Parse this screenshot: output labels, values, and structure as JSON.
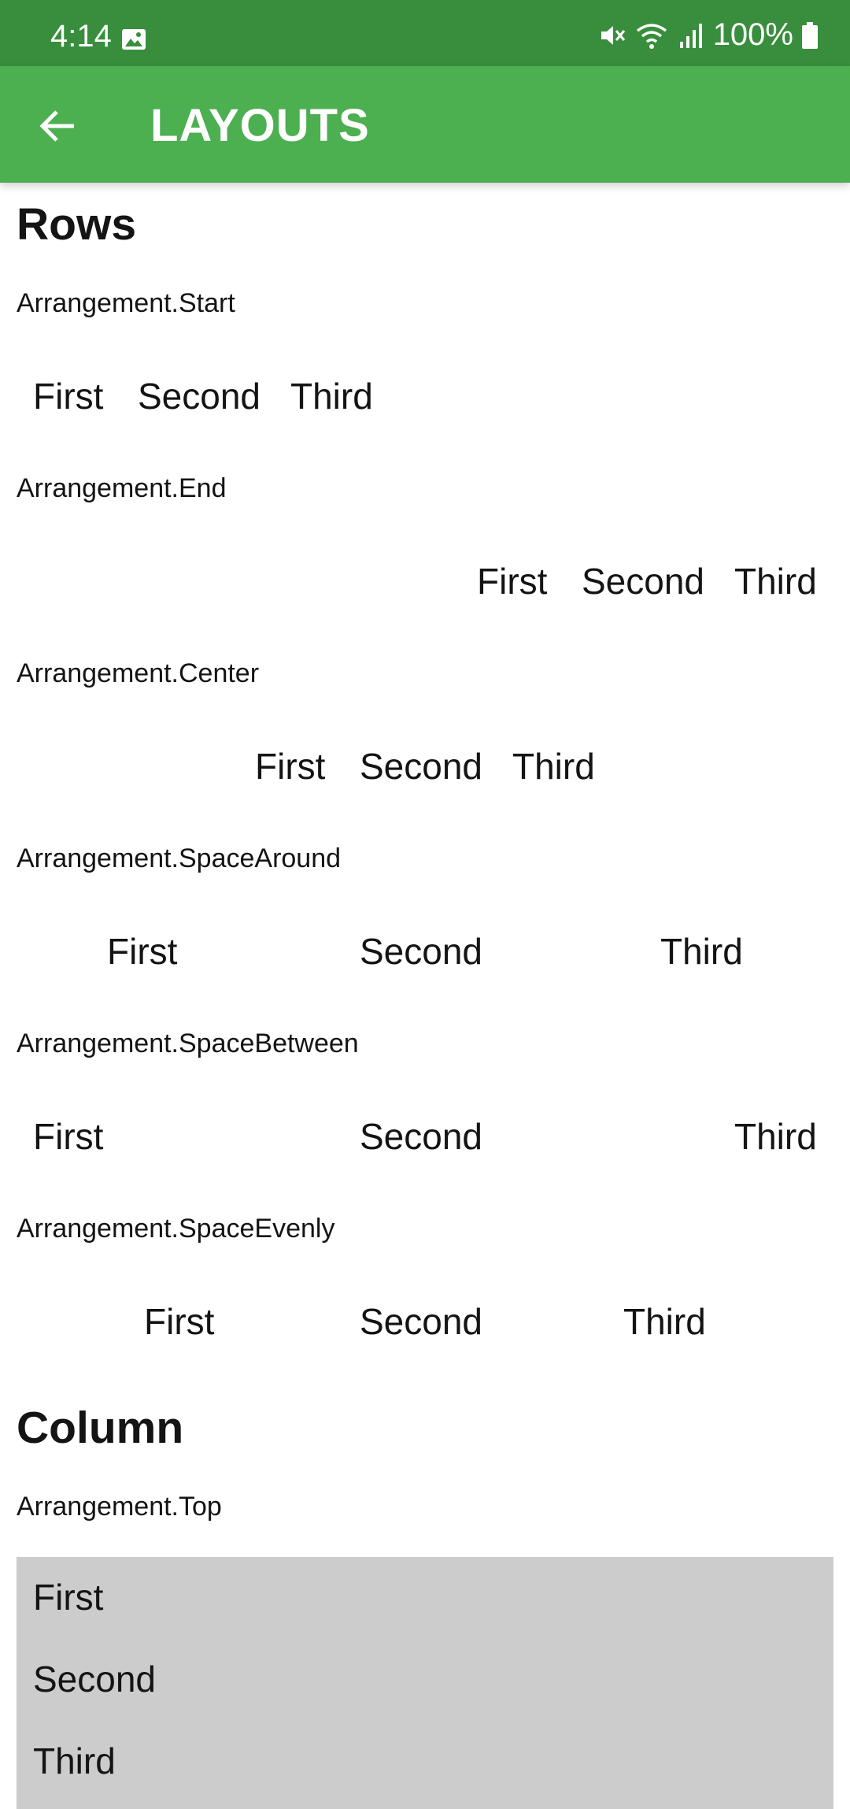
{
  "status_bar": {
    "time": "4:14",
    "battery": "100%",
    "icons": [
      "image-icon",
      "mute-icon",
      "wifi-icon",
      "signal-icon",
      "battery-icon"
    ]
  },
  "app_bar": {
    "title": "LAYOUTS",
    "back_icon": "arrow-back-icon",
    "color": "#4caf50",
    "status_color": "#388e3c"
  },
  "rows_section": {
    "heading": "Rows",
    "items": [
      {
        "label": "Arrangement.Start",
        "first": "First",
        "second": "Second",
        "third": "Third"
      },
      {
        "label": "Arrangement.End",
        "first": "First",
        "second": "Second",
        "third": "Third"
      },
      {
        "label": "Arrangement.Center",
        "first": "First",
        "second": "Second",
        "third": "Third"
      },
      {
        "label": "Arrangement.SpaceAround",
        "first": "First",
        "second": "Second",
        "third": "Third"
      },
      {
        "label": "Arrangement.SpaceBetween",
        "first": "First",
        "second": "Second",
        "third": "Third"
      },
      {
        "label": "Arrangement.SpaceEvenly",
        "first": "First",
        "second": "Second",
        "third": "Third"
      }
    ]
  },
  "column_section": {
    "heading": "Column",
    "label": "Arrangement.Top",
    "first": "First",
    "second": "Second",
    "third": "Third",
    "box_color": "#cccccc"
  }
}
